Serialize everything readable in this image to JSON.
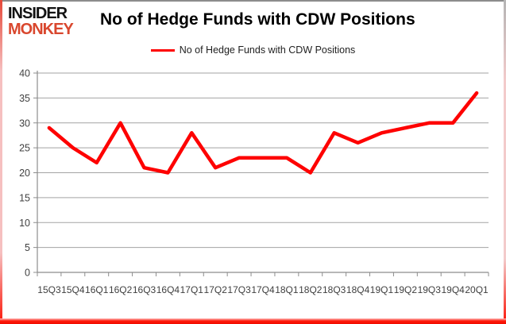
{
  "logo": {
    "line1": "INSIDER",
    "line2": "MONKEY"
  },
  "header": {
    "title": "No of Hedge Funds with CDW Positions"
  },
  "legend": {
    "label": "No of Hedge Funds with CDW Positions",
    "line_color": "#fe0000"
  },
  "colors": {
    "line": "#fe0000",
    "grid": "#a3a3a3",
    "axis": "#8c8c8c",
    "label": "#3f3f3f",
    "logo_red": "#d9472e",
    "border_pink": "#f6c0c0",
    "border_red": "#fb1507"
  },
  "chart_data": {
    "type": "line",
    "title": "No of Hedge Funds with CDW Positions",
    "categories": [
      "15Q3",
      "15Q4",
      "16Q1",
      "16Q2",
      "16Q3",
      "16Q4",
      "17Q1",
      "17Q2",
      "17Q3",
      "17Q4",
      "18Q1",
      "18Q2",
      "18Q3",
      "18Q4",
      "19Q1",
      "19Q2",
      "19Q3",
      "19Q4",
      "20Q1"
    ],
    "values": [
      29,
      25,
      22,
      30,
      21,
      20,
      28,
      21,
      23,
      23,
      23,
      20,
      28,
      26,
      28,
      29,
      30,
      30,
      36
    ],
    "series_name": "No of Hedge Funds with CDW Positions",
    "xlabel": "",
    "ylabel": "",
    "ylim": [
      0,
      40
    ],
    "ytick_step": 5,
    "grid": true,
    "legend_position": "top-center"
  }
}
